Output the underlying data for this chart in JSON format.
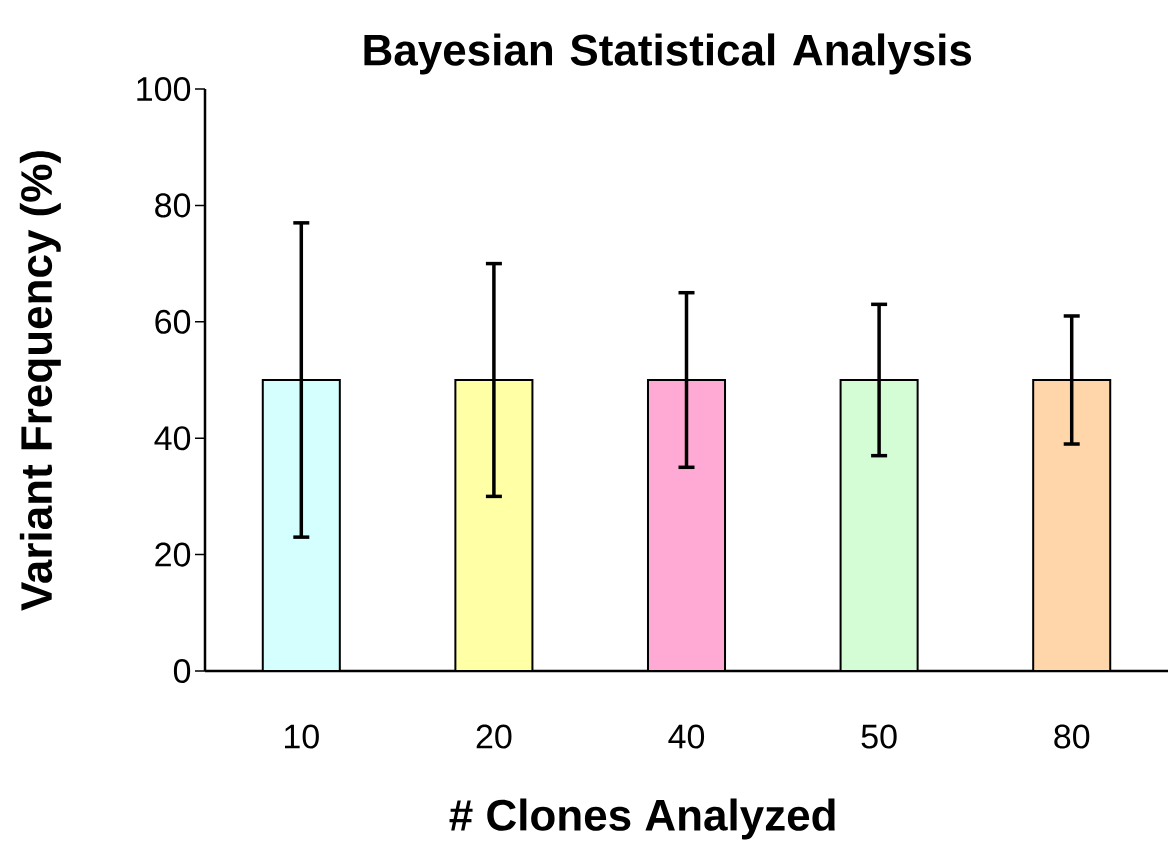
{
  "chart_data": {
    "type": "bar",
    "title": "Bayesian Statistical Analysis",
    "xlabel": "# Clones Analyzed",
    "ylabel": "Variant Frequency  (%)",
    "categories": [
      "10",
      "20",
      "40",
      "50",
      "80"
    ],
    "values": [
      50,
      50,
      50,
      50,
      50
    ],
    "errors": [
      27,
      20,
      15,
      13,
      11
    ],
    "colors": [
      "#d5ffff",
      "#ffffa6",
      "#ffaad5",
      "#d5fdd5",
      "#ffd5aa"
    ],
    "ylim": [
      0,
      100
    ],
    "yticks": [
      0,
      20,
      40,
      60,
      80,
      100
    ]
  }
}
